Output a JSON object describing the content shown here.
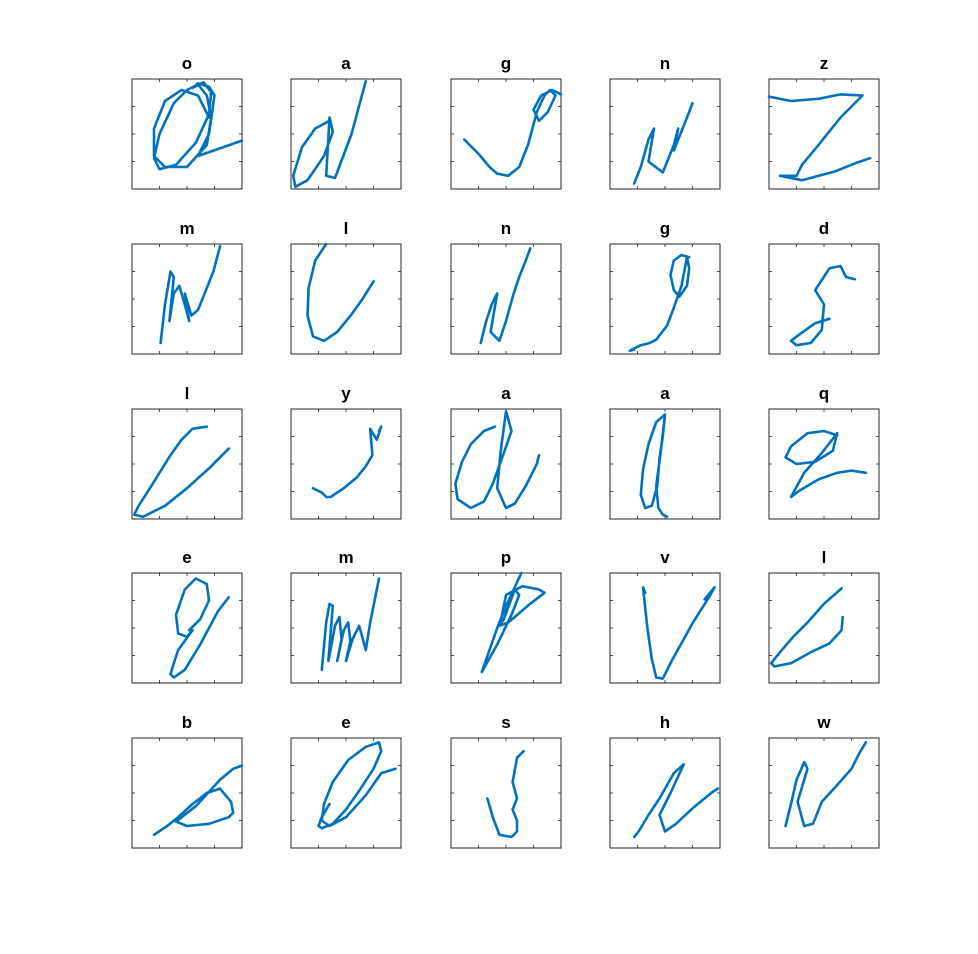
{
  "chart_data": {
    "type": "line",
    "line_color": "#0072BD",
    "grid": false,
    "layout": {
      "rows": 5,
      "cols": 5
    },
    "xlim": [
      0,
      1
    ],
    "ylim": [
      0,
      1
    ],
    "panels": [
      {
        "title": "o",
        "x": [
          0.7,
          0.6,
          0.45,
          0.3,
          0.2,
          0.2,
          0.3,
          0.5,
          0.68,
          0.72,
          0.68,
          0.6,
          0.5,
          0.38,
          0.25,
          0.2,
          0.25,
          0.4,
          0.58,
          0.7,
          0.72,
          0.65,
          0.55,
          0.6,
          0.7,
          0.75,
          0.7,
          0.6,
          1.0
        ],
        "y": [
          0.65,
          0.85,
          0.9,
          0.8,
          0.55,
          0.3,
          0.2,
          0.2,
          0.4,
          0.65,
          0.85,
          0.95,
          0.9,
          0.78,
          0.5,
          0.28,
          0.18,
          0.22,
          0.42,
          0.68,
          0.88,
          0.97,
          0.92,
          0.96,
          0.93,
          0.85,
          0.5,
          0.3,
          0.44
        ]
      },
      {
        "title": "a",
        "x": [
          0.35,
          0.22,
          0.1,
          0.02,
          0.04,
          0.15,
          0.3,
          0.38,
          0.35,
          0.32,
          0.4,
          0.55,
          0.68
        ],
        "y": [
          0.62,
          0.55,
          0.38,
          0.12,
          0.02,
          0.08,
          0.3,
          0.52,
          0.65,
          0.12,
          0.1,
          0.5,
          0.98
        ]
      },
      {
        "title": "g",
        "x": [
          0.12,
          0.25,
          0.35,
          0.42,
          0.52,
          0.62,
          0.7,
          0.78,
          0.85,
          0.9,
          0.95,
          0.88,
          0.8,
          0.75,
          0.82,
          0.92,
          0.96,
          1.0
        ],
        "y": [
          0.45,
          0.32,
          0.2,
          0.14,
          0.12,
          0.2,
          0.4,
          0.7,
          0.85,
          0.9,
          0.85,
          0.7,
          0.62,
          0.72,
          0.85,
          0.9,
          0.88,
          0.86
        ]
      },
      {
        "title": "n",
        "x": [
          0.22,
          0.28,
          0.35,
          0.4,
          0.35,
          0.48,
          0.58,
          0.62,
          0.58,
          0.72,
          0.75
        ],
        "y": [
          0.05,
          0.2,
          0.45,
          0.55,
          0.25,
          0.15,
          0.4,
          0.55,
          0.35,
          0.7,
          0.78
        ]
      },
      {
        "title": "z",
        "x": [
          0.0,
          0.2,
          0.45,
          0.65,
          0.85,
          0.65,
          0.45,
          0.3,
          0.25,
          0.1,
          0.3,
          0.6,
          0.8,
          0.92
        ],
        "y": [
          0.84,
          0.8,
          0.82,
          0.86,
          0.85,
          0.65,
          0.4,
          0.22,
          0.12,
          0.12,
          0.08,
          0.16,
          0.24,
          0.28
        ]
      },
      {
        "title": "m",
        "x": [
          0.26,
          0.3,
          0.35,
          0.38,
          0.34,
          0.38,
          0.43,
          0.48,
          0.52,
          0.48,
          0.54,
          0.6,
          0.74,
          0.8
        ],
        "y": [
          0.1,
          0.45,
          0.75,
          0.7,
          0.3,
          0.55,
          0.62,
          0.45,
          0.3,
          0.55,
          0.35,
          0.4,
          0.75,
          0.98
        ]
      },
      {
        "title": "l",
        "x": [
          0.32,
          0.22,
          0.16,
          0.15,
          0.2,
          0.3,
          0.42,
          0.55,
          0.65,
          0.75
        ],
        "y": [
          1.0,
          0.85,
          0.6,
          0.35,
          0.16,
          0.12,
          0.2,
          0.36,
          0.5,
          0.66
        ]
      },
      {
        "title": "n",
        "x": [
          0.27,
          0.32,
          0.37,
          0.42,
          0.36,
          0.44,
          0.5,
          0.57,
          0.62,
          0.68,
          0.72
        ],
        "y": [
          0.1,
          0.3,
          0.45,
          0.55,
          0.2,
          0.12,
          0.3,
          0.55,
          0.7,
          0.85,
          0.96
        ]
      },
      {
        "title": "g",
        "x": [
          0.72,
          0.65,
          0.58,
          0.55,
          0.58,
          0.63,
          0.7,
          0.72,
          0.7,
          0.65,
          0.58,
          0.52,
          0.42,
          0.36,
          0.28,
          0.18,
          0.22
        ],
        "y": [
          0.88,
          0.9,
          0.85,
          0.72,
          0.58,
          0.52,
          0.62,
          0.78,
          0.88,
          0.62,
          0.42,
          0.26,
          0.13,
          0.1,
          0.08,
          0.03,
          0.04
        ]
      },
      {
        "title": "d",
        "x": [
          0.55,
          0.42,
          0.28,
          0.2,
          0.25,
          0.38,
          0.48,
          0.5,
          0.42,
          0.55,
          0.65,
          0.7,
          0.78
        ],
        "y": [
          0.32,
          0.28,
          0.18,
          0.12,
          0.08,
          0.1,
          0.22,
          0.45,
          0.58,
          0.78,
          0.8,
          0.7,
          0.68
        ]
      },
      {
        "title": "l",
        "x": [
          0.68,
          0.55,
          0.45,
          0.35,
          0.25,
          0.15,
          0.06,
          0.02,
          0.1,
          0.3,
          0.5,
          0.7,
          0.88
        ],
        "y": [
          0.84,
          0.82,
          0.72,
          0.58,
          0.42,
          0.26,
          0.12,
          0.04,
          0.02,
          0.12,
          0.28,
          0.46,
          0.64
        ]
      },
      {
        "title": "y",
        "x": [
          0.2,
          0.28,
          0.32,
          0.36,
          0.48,
          0.6,
          0.68,
          0.74,
          0.72,
          0.78,
          0.82,
          0.8
        ],
        "y": [
          0.28,
          0.24,
          0.2,
          0.2,
          0.28,
          0.38,
          0.48,
          0.58,
          0.82,
          0.72,
          0.84,
          0.8
        ]
      },
      {
        "title": "a",
        "x": [
          0.4,
          0.3,
          0.18,
          0.1,
          0.04,
          0.06,
          0.18,
          0.3,
          0.38,
          0.48,
          0.55,
          0.5,
          0.45,
          0.42,
          0.5,
          0.58,
          0.68,
          0.78,
          0.8
        ],
        "y": [
          0.84,
          0.8,
          0.68,
          0.52,
          0.32,
          0.18,
          0.1,
          0.16,
          0.32,
          0.6,
          0.8,
          0.98,
          0.6,
          0.28,
          0.1,
          0.14,
          0.3,
          0.5,
          0.58
        ]
      },
      {
        "title": "a",
        "x": [
          0.5,
          0.42,
          0.35,
          0.3,
          0.28,
          0.32,
          0.38,
          0.43,
          0.45,
          0.48,
          0.5,
          0.46,
          0.42,
          0.44,
          0.48,
          0.52
        ],
        "y": [
          0.95,
          0.88,
          0.68,
          0.45,
          0.22,
          0.1,
          0.12,
          0.3,
          0.55,
          0.75,
          0.95,
          0.6,
          0.3,
          0.1,
          0.04,
          0.02
        ]
      },
      {
        "title": "q",
        "x": [
          0.62,
          0.5,
          0.35,
          0.2,
          0.15,
          0.25,
          0.42,
          0.58,
          0.62,
          0.48,
          0.32,
          0.2,
          0.28,
          0.45,
          0.62,
          0.75,
          0.88
        ],
        "y": [
          0.76,
          0.8,
          0.78,
          0.66,
          0.56,
          0.5,
          0.52,
          0.62,
          0.78,
          0.6,
          0.42,
          0.2,
          0.26,
          0.36,
          0.42,
          0.44,
          0.42
        ]
      },
      {
        "title": "e",
        "x": [
          0.52,
          0.62,
          0.7,
          0.68,
          0.58,
          0.48,
          0.4,
          0.42,
          0.5,
          0.55,
          0.42,
          0.38,
          0.35,
          0.38,
          0.48,
          0.62,
          0.78,
          0.88
        ],
        "y": [
          0.48,
          0.58,
          0.75,
          0.9,
          0.95,
          0.85,
          0.62,
          0.45,
          0.42,
          0.48,
          0.3,
          0.18,
          0.08,
          0.05,
          0.12,
          0.35,
          0.65,
          0.78
        ]
      },
      {
        "title": "m",
        "x": [
          0.28,
          0.32,
          0.35,
          0.38,
          0.34,
          0.4,
          0.44,
          0.46,
          0.42,
          0.48,
          0.52,
          0.54,
          0.5,
          0.56,
          0.62,
          0.68,
          0.72,
          0.8
        ],
        "y": [
          0.12,
          0.55,
          0.72,
          0.7,
          0.2,
          0.52,
          0.6,
          0.4,
          0.2,
          0.48,
          0.55,
          0.38,
          0.2,
          0.4,
          0.52,
          0.3,
          0.55,
          0.95
        ]
      },
      {
        "title": "p",
        "x": [
          0.64,
          0.5,
          0.42,
          0.35,
          0.28,
          0.42,
          0.55,
          0.62,
          0.58,
          0.48,
          0.44,
          0.52,
          0.72,
          0.85,
          0.8,
          0.65,
          0.5,
          0.45
        ],
        "y": [
          1.0,
          0.7,
          0.5,
          0.3,
          0.1,
          0.35,
          0.62,
          0.8,
          0.85,
          0.58,
          0.52,
          0.55,
          0.72,
          0.82,
          0.85,
          0.88,
          0.8,
          0.55
        ]
      },
      {
        "title": "v",
        "x": [
          0.32,
          0.3,
          0.34,
          0.38,
          0.42,
          0.48,
          0.56,
          0.66,
          0.76,
          0.9,
          0.95,
          0.86
        ],
        "y": [
          0.82,
          0.87,
          0.5,
          0.22,
          0.05,
          0.04,
          0.2,
          0.38,
          0.56,
          0.78,
          0.87,
          0.76
        ]
      },
      {
        "title": "l",
        "x": [
          0.66,
          0.5,
          0.36,
          0.22,
          0.1,
          0.02,
          0.05,
          0.2,
          0.38,
          0.55,
          0.66,
          0.67
        ],
        "y": [
          0.86,
          0.72,
          0.56,
          0.42,
          0.28,
          0.18,
          0.15,
          0.18,
          0.28,
          0.36,
          0.48,
          0.6
        ]
      },
      {
        "title": "b",
        "x": [
          0.2,
          0.32,
          0.42,
          0.55,
          0.68,
          0.8,
          0.9,
          0.92,
          0.88,
          0.7,
          0.5,
          0.4,
          0.58,
          0.8,
          0.92,
          1.0,
          0.98
        ],
        "y": [
          0.12,
          0.2,
          0.28,
          0.4,
          0.5,
          0.54,
          0.42,
          0.32,
          0.28,
          0.22,
          0.2,
          0.24,
          0.38,
          0.62,
          0.72,
          0.75,
          0.74
        ]
      },
      {
        "title": "e",
        "x": [
          0.35,
          0.28,
          0.25,
          0.28,
          0.38,
          0.5,
          0.62,
          0.75,
          0.82,
          0.8,
          0.68,
          0.52,
          0.38,
          0.3,
          0.28,
          0.35,
          0.5,
          0.68,
          0.82,
          0.95
        ],
        "y": [
          0.4,
          0.28,
          0.2,
          0.18,
          0.22,
          0.35,
          0.52,
          0.72,
          0.88,
          0.96,
          0.92,
          0.8,
          0.6,
          0.4,
          0.25,
          0.2,
          0.28,
          0.48,
          0.68,
          0.72
        ]
      },
      {
        "title": "s",
        "x": [
          0.66,
          0.6,
          0.56,
          0.6,
          0.56,
          0.6,
          0.6,
          0.55,
          0.44,
          0.38,
          0.34,
          0.33
        ],
        "y": [
          0.88,
          0.82,
          0.6,
          0.45,
          0.35,
          0.25,
          0.15,
          0.1,
          0.12,
          0.28,
          0.42,
          0.45
        ]
      },
      {
        "title": "h",
        "x": [
          0.22,
          0.26,
          0.35,
          0.45,
          0.58,
          0.67,
          0.55,
          0.45,
          0.5,
          0.6,
          0.75,
          0.92,
          0.98
        ],
        "y": [
          0.1,
          0.15,
          0.3,
          0.45,
          0.68,
          0.76,
          0.5,
          0.3,
          0.15,
          0.22,
          0.36,
          0.5,
          0.54
        ]
      },
      {
        "title": "w",
        "x": [
          0.15,
          0.2,
          0.25,
          0.32,
          0.35,
          0.26,
          0.32,
          0.4,
          0.48,
          0.6,
          0.75,
          0.82,
          0.88
        ],
        "y": [
          0.2,
          0.4,
          0.62,
          0.78,
          0.72,
          0.42,
          0.2,
          0.22,
          0.42,
          0.55,
          0.72,
          0.86,
          0.96
        ]
      }
    ]
  }
}
